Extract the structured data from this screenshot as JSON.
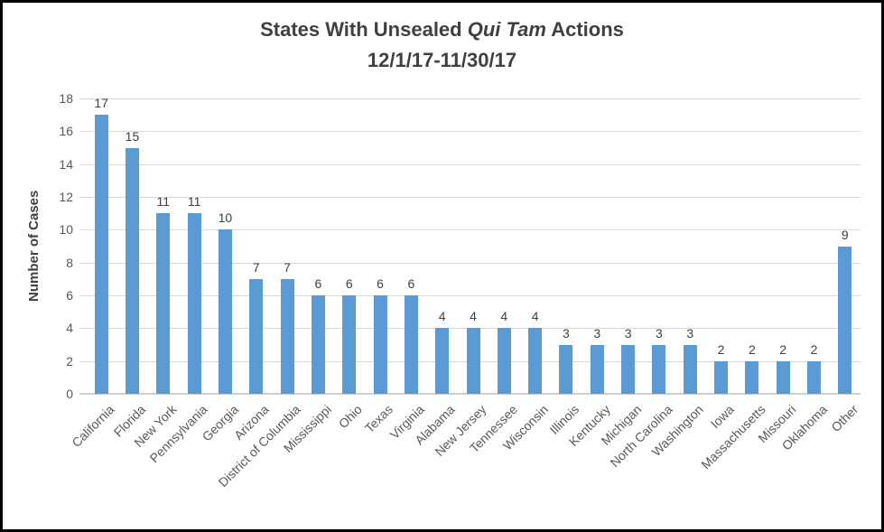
{
  "title": {
    "prefix": "States With Unsealed ",
    "italic": "Qui Tam",
    "suffix": " Actions",
    "subtitle": "12/1/17-11/30/17"
  },
  "y_axis": {
    "label": "Number of Cases"
  },
  "chart_data": {
    "type": "bar",
    "title": "States With Unsealed Qui Tam Actions 12/1/17-11/30/17",
    "categories": [
      "California",
      "Florida",
      "New York",
      "Pennsylvania",
      "Georgia",
      "Arizona",
      "District of Columbia",
      "Mississippi",
      "Ohio",
      "Texas",
      "Virginia",
      "Alabama",
      "New Jersey",
      "Tennessee",
      "Wisconsin",
      "Illinois",
      "Kentucky",
      "Michigan",
      "North Carolina",
      "Washington",
      "Iowa",
      "Massachusetts",
      "Missouri",
      "Oklahoma",
      "Other"
    ],
    "values": [
      17,
      15,
      11,
      11,
      10,
      7,
      7,
      6,
      6,
      6,
      6,
      4,
      4,
      4,
      4,
      3,
      3,
      3,
      3,
      3,
      2,
      2,
      2,
      2,
      9
    ],
    "xlabel": "",
    "ylabel": "Number of Cases",
    "ylim": [
      0,
      18
    ],
    "yticks": [
      0,
      2,
      4,
      6,
      8,
      10,
      12,
      14,
      16,
      18
    ],
    "grid": true,
    "legend": false,
    "data_labels": true,
    "bar_color": "#5b9bd5"
  },
  "colors": {
    "bar": "#5b9bd5",
    "gridline": "#d9d9d9",
    "axis_line": "#d0d0d0",
    "axis_text": "#595959",
    "title_text": "#404040",
    "frame_border": "#000000",
    "background": "#ffffff"
  }
}
